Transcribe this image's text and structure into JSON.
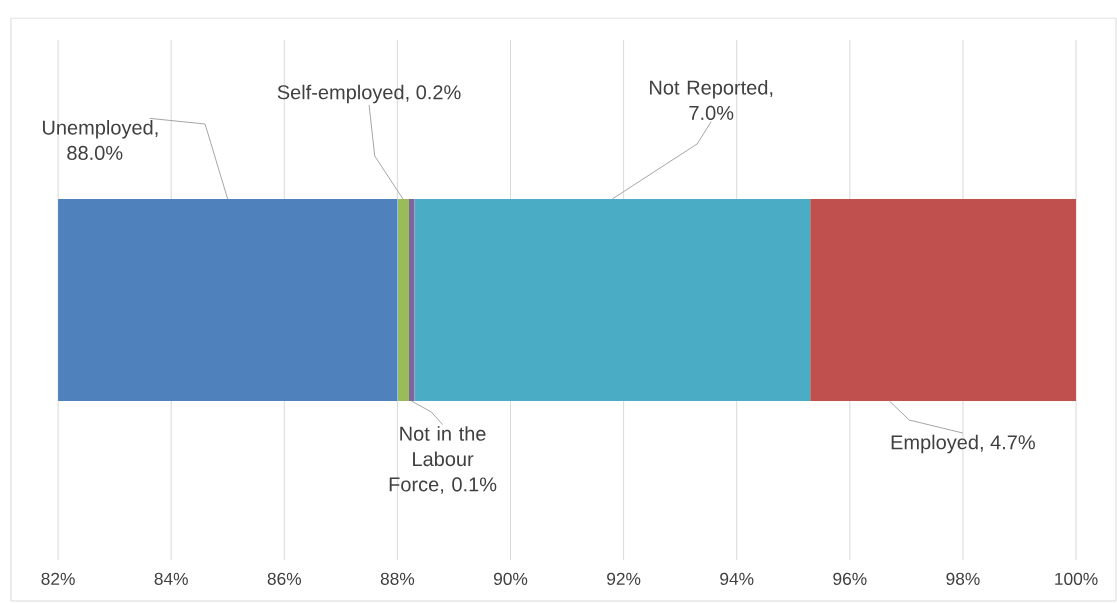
{
  "chart_data": {
    "type": "bar",
    "orientation": "horizontal",
    "categories": [
      null
    ],
    "series": [
      {
        "color": "#4f81bd",
        "values": [
          88.0
        ],
        "base": [
          0
        ],
        "value_labels": [
          "Unemployed, 88.0%"
        ]
      },
      {
        "color": "#9bbb59",
        "values": [
          0.2
        ],
        "base": [
          88.0
        ],
        "value_labels": [
          "Self-employed, 0.2%"
        ]
      },
      {
        "color": "#8064a2",
        "values": [
          0.1
        ],
        "base": [
          88.2
        ],
        "value_labels": [
          "Not in the Labour Force, 0.1%"
        ]
      },
      {
        "color": "#4bacc6",
        "values": [
          7.0
        ],
        "base": [
          88.3
        ],
        "value_labels": [
          "Not Reported, 7.0%"
        ]
      },
      {
        "color": "#c0504d",
        "values": [
          4.7
        ],
        "base": [
          95.3
        ],
        "value_labels": [
          "Employed, 4.7%"
        ]
      }
    ],
    "xlim": [
      82,
      100
    ],
    "xticks": [
      {
        "value": 82,
        "label": "82%"
      },
      {
        "value": 84,
        "label": "84%"
      },
      {
        "value": 86,
        "label": "86%"
      },
      {
        "value": 88,
        "label": "88%"
      },
      {
        "value": 90,
        "label": "90%"
      },
      {
        "value": 92,
        "label": "92%"
      },
      {
        "value": 94,
        "label": "94%"
      },
      {
        "value": 96,
        "label": "96%"
      },
      {
        "value": 98,
        "label": "98%"
      },
      {
        "value": 100,
        "label": "100%"
      }
    ],
    "grid": "x"
  }
}
